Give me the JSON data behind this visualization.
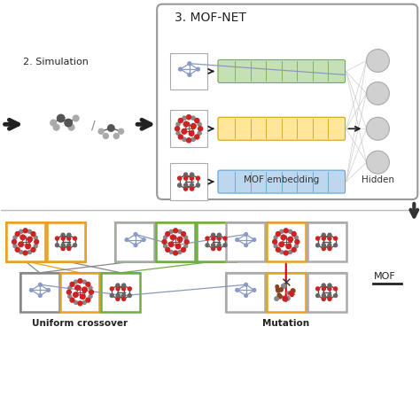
{
  "title_mofnet": "3. MOF-NET",
  "label_simulation": "2. Simulation",
  "label_mof_embedding": "MOF embedding",
  "label_hidden": "Hidden",
  "label_uniform": "Uniform crossover",
  "label_mutation": "Mutation",
  "label_mof": "MOF",
  "bg_color": "#ffffff",
  "green_bar_color": "#c5e0b4",
  "green_bar_edge": "#70ad47",
  "yellow_bar_color": "#ffe699",
  "yellow_bar_edge": "#d4a017",
  "blue_bar_color": "#bdd7ee",
  "blue_bar_edge": "#5ba3d0",
  "orange_box_color": "#e8a020",
  "green_box_color": "#70ad47",
  "divider_color": "#bbbbbb",
  "arrow_color": "#222222",
  "red_arrow_color": "#cc0000",
  "node_color": "#d0d0d0",
  "figsize": [
    4.74,
    4.74
  ],
  "dpi": 100
}
